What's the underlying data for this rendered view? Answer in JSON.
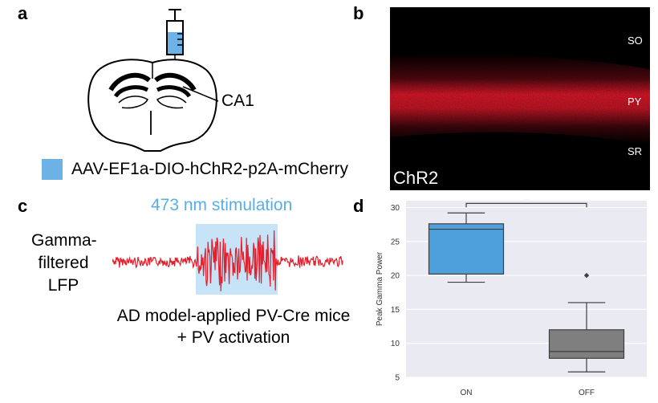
{
  "panels": {
    "a": {
      "letter": "a",
      "region_label": "CA1",
      "legend_text": "AAV-EF1a-DIO-hChR2-p2A-mCherry",
      "legend_color": "#6cb2e4"
    },
    "b": {
      "letter": "b",
      "layers": [
        "SO",
        "PY",
        "SR"
      ],
      "image_label": "ChR2",
      "signal_color": "#e8192c"
    },
    "c": {
      "letter": "c",
      "stimulation_label": "473 nm stimulation",
      "signal_label_lines": [
        "Gamma-",
        "filtered",
        "LFP"
      ],
      "caption_lines": [
        "AD model-applied PV-Cre mice",
        "+ PV activation"
      ],
      "stim_color": "#c6e3f7",
      "trace_color": "#e41e2b"
    },
    "d": {
      "letter": "d"
    }
  },
  "chart_data": {
    "type": "box",
    "categories": [
      "ON",
      "OFF"
    ],
    "ylabel": "Peak Gamma Power",
    "xlabel": "",
    "ylim": [
      5,
      31
    ],
    "yticks": [
      5,
      10,
      15,
      20,
      25,
      30
    ],
    "boxes": [
      {
        "category": "ON",
        "whisker_low": 19.0,
        "q1": 20.2,
        "median": 26.8,
        "q3": 27.6,
        "whisker_high": 29.2,
        "outliers": [],
        "color": "#4ea0dc"
      },
      {
        "category": "OFF",
        "whisker_low": 5.8,
        "q1": 7.8,
        "median": 8.8,
        "q3": 12.0,
        "whisker_high": 16.0,
        "outliers": [
          20.0
        ],
        "color": "#7f7f7f"
      }
    ],
    "significance": {
      "label": "***",
      "between": [
        "ON",
        "OFF"
      ],
      "y": 30.6
    },
    "grid": true,
    "background": "#eaeaf2"
  }
}
